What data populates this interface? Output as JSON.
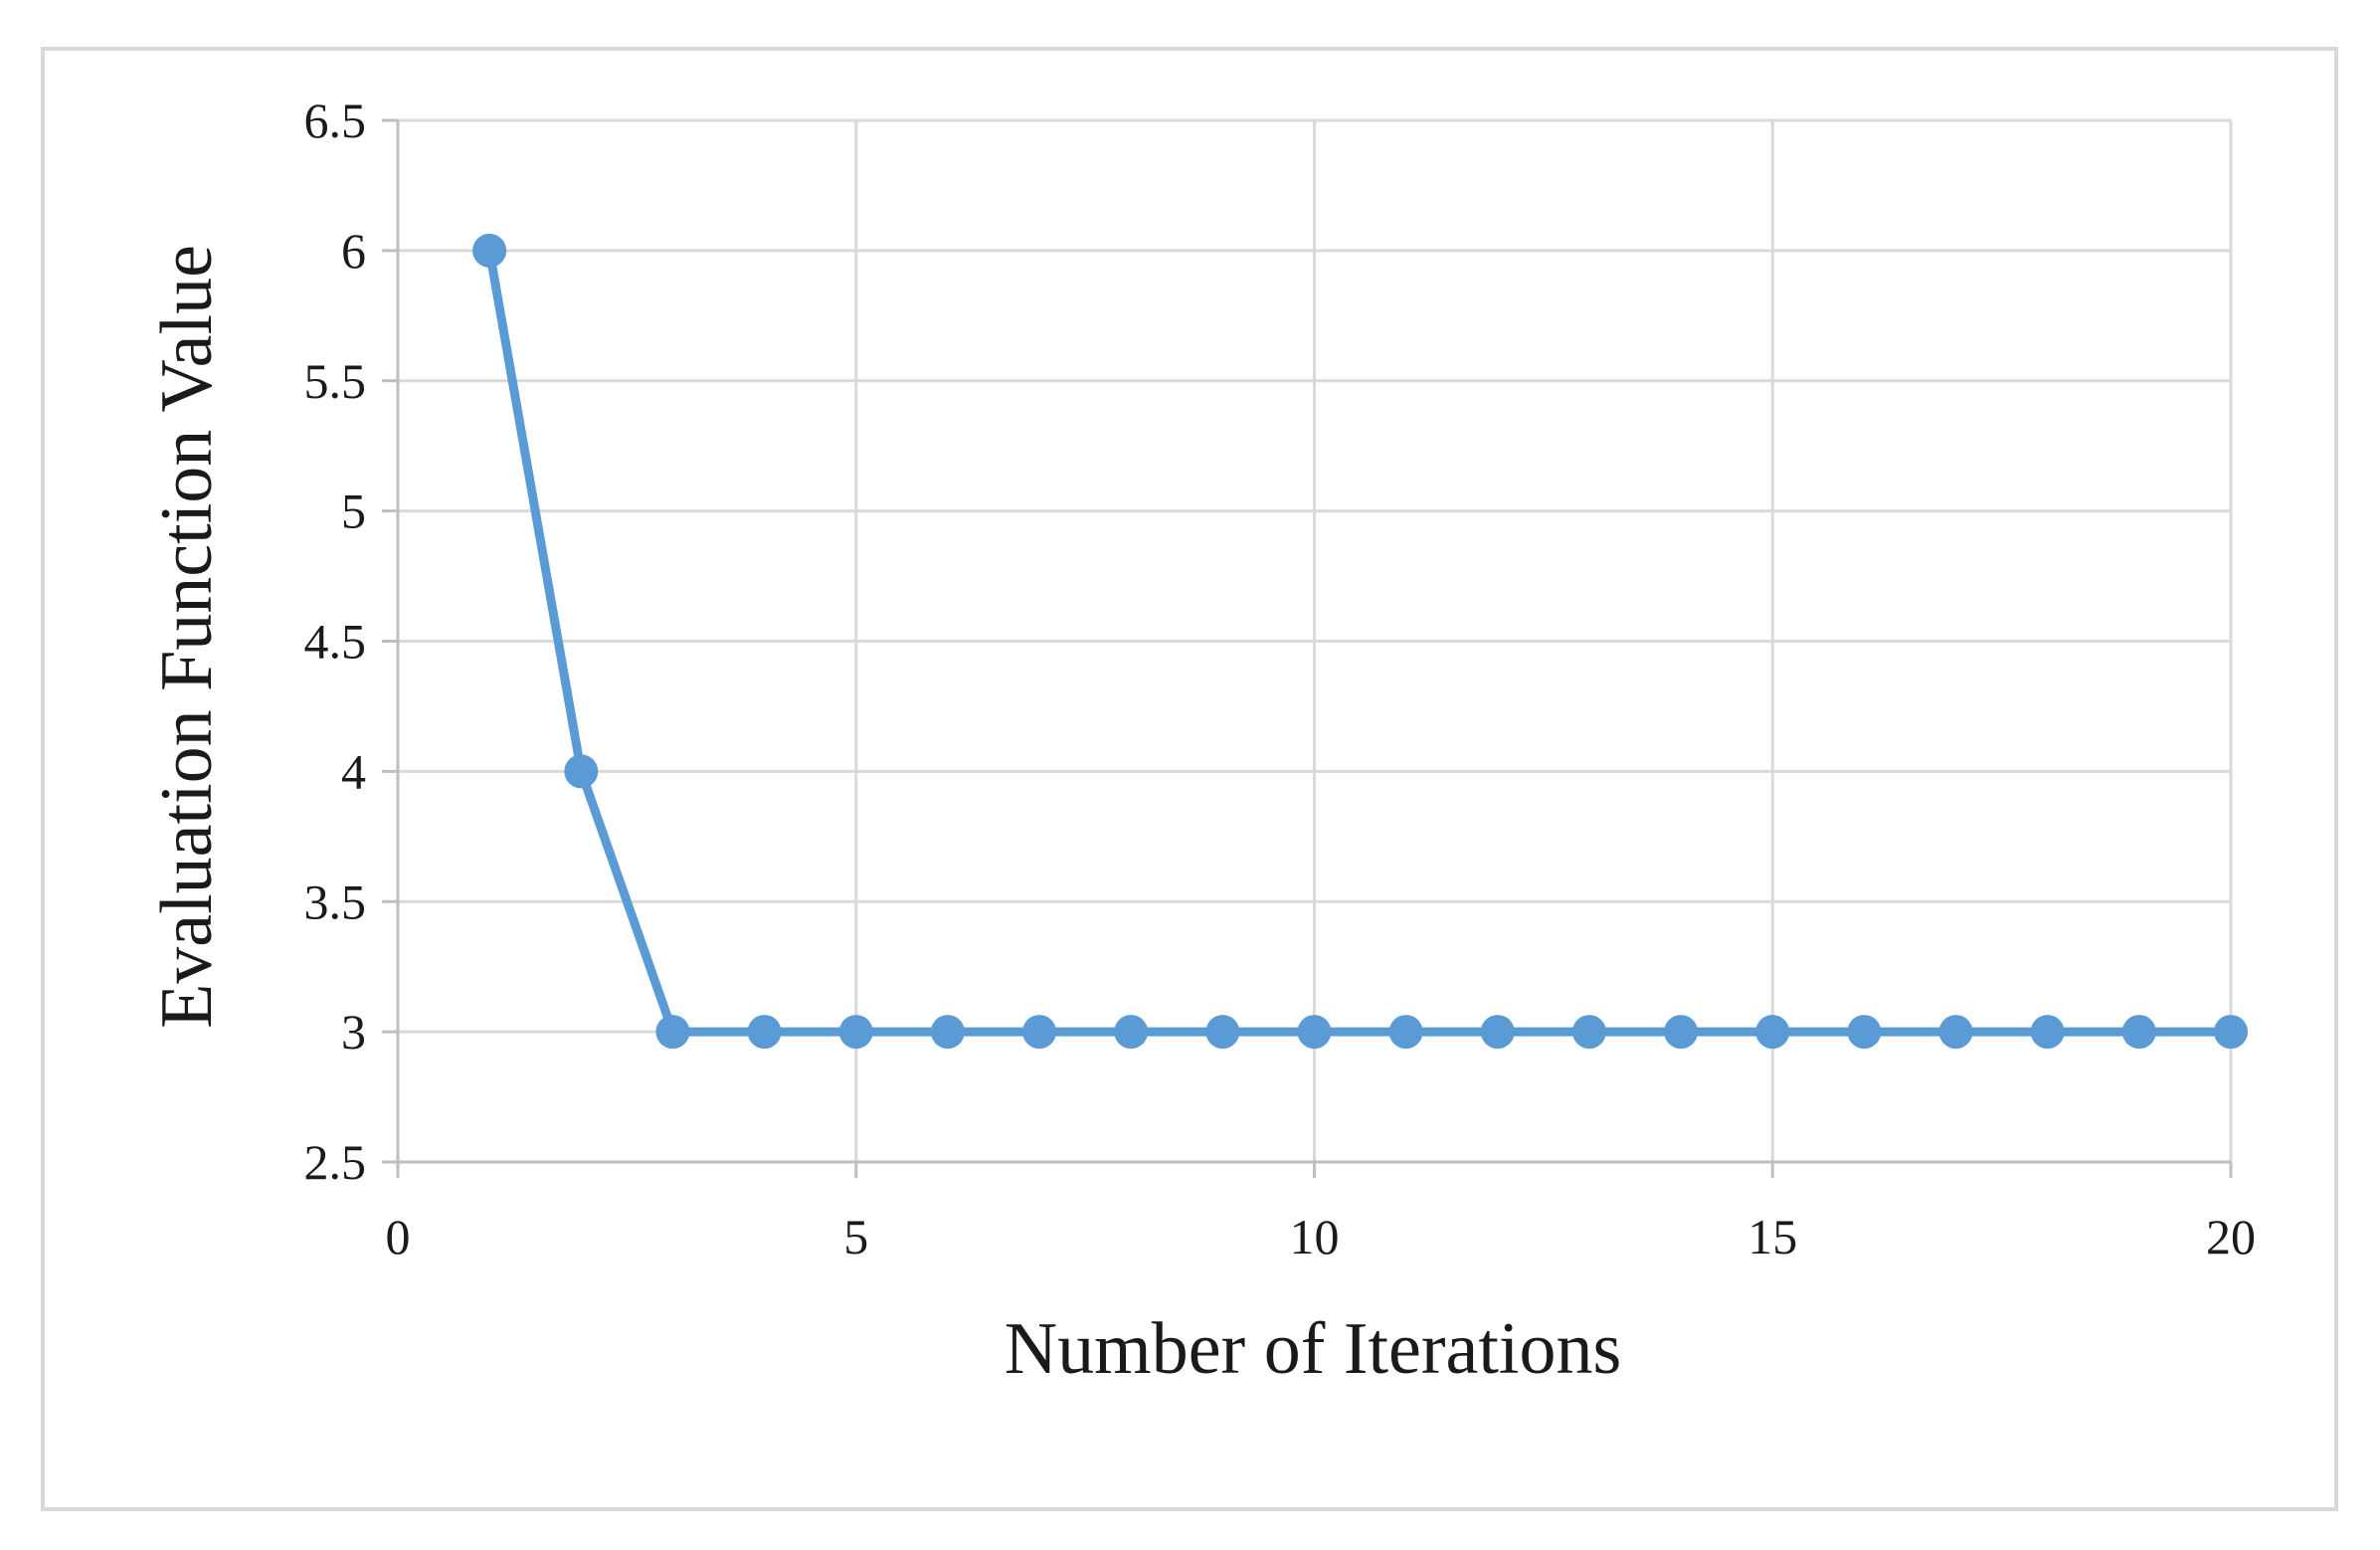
{
  "chart_data": {
    "type": "line",
    "title": "",
    "xlabel": "Number of Iterations",
    "ylabel": "Evaluation Function Value",
    "xlim": [
      0,
      20
    ],
    "ylim": [
      2.5,
      6.5
    ],
    "x_ticks": [
      0,
      5,
      10,
      15,
      20
    ],
    "x_tick_labels": [
      "0",
      "5",
      "10",
      "15",
      "20"
    ],
    "y_ticks": [
      2.5,
      3,
      3.5,
      4,
      4.5,
      5,
      5.5,
      6,
      6.5
    ],
    "y_tick_labels": [
      "2.5",
      "3",
      "3.5",
      "4",
      "4.5",
      "5",
      "5.5",
      "6",
      "6.5"
    ],
    "grid": true,
    "legend": "none",
    "series": [
      {
        "color": "#5B9BD5",
        "marker": "circle",
        "x": [
          1,
          2,
          3,
          4,
          5,
          6,
          7,
          8,
          9,
          10,
          11,
          12,
          13,
          14,
          15,
          16,
          17,
          18,
          19,
          20
        ],
        "values": [
          6,
          4,
          3,
          3,
          3,
          3,
          3,
          3,
          3,
          3,
          3,
          3,
          3,
          3,
          3,
          3,
          3,
          3,
          3,
          3
        ]
      }
    ]
  },
  "colors": {
    "frame": "#d9d9d9",
    "grid": "#d9d9d9",
    "axis": "#bfbfbf",
    "series": "#5B9BD5"
  }
}
